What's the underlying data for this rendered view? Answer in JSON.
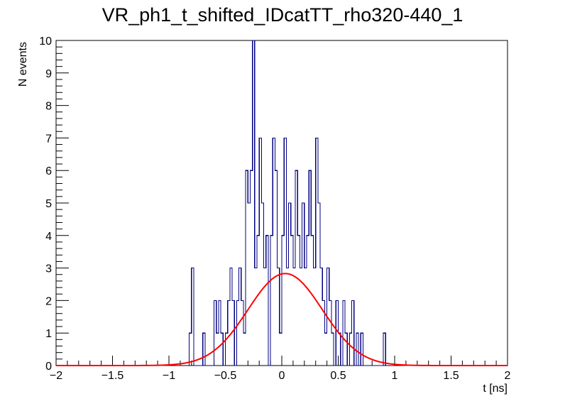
{
  "chart_data": {
    "type": "histogram",
    "title": "VR_ph1_t_shifted_IDcatTT_rho320-440_1",
    "xlabel": "t [ns]",
    "ylabel": "N events",
    "xlim": [
      -2,
      2
    ],
    "ylim": [
      0,
      10
    ],
    "x_ticks": [
      -2,
      -1.5,
      -1,
      -0.5,
      0,
      0.5,
      1,
      1.5,
      2
    ],
    "x_tick_labels": [
      "−2",
      "−1.5",
      "−1",
      "−0.5",
      "0",
      "0.5",
      "1",
      "1.5",
      "2"
    ],
    "y_ticks": [
      0,
      1,
      2,
      3,
      4,
      5,
      6,
      7,
      8,
      9,
      10
    ],
    "y_tick_labels": [
      "0",
      "1",
      "2",
      "3",
      "4",
      "5",
      "6",
      "7",
      "8",
      "9",
      "10"
    ],
    "grid": false,
    "legend": "none",
    "histogram": {
      "bin_width": 0.02,
      "bins": [
        [
          -0.82,
          1
        ],
        [
          -0.8,
          3
        ],
        [
          -0.78,
          0
        ],
        [
          -0.7,
          1
        ],
        [
          -0.68,
          0
        ],
        [
          -0.6,
          2
        ],
        [
          -0.58,
          1
        ],
        [
          -0.56,
          2
        ],
        [
          -0.54,
          1
        ],
        [
          -0.52,
          0
        ],
        [
          -0.5,
          1
        ],
        [
          -0.48,
          2
        ],
        [
          -0.46,
          3
        ],
        [
          -0.44,
          2
        ],
        [
          -0.42,
          0
        ],
        [
          -0.4,
          2
        ],
        [
          -0.38,
          3
        ],
        [
          -0.36,
          2
        ],
        [
          -0.34,
          1
        ],
        [
          -0.32,
          6
        ],
        [
          -0.3,
          5
        ],
        [
          -0.28,
          6
        ],
        [
          -0.26,
          10
        ],
        [
          -0.24,
          3
        ],
        [
          -0.22,
          4
        ],
        [
          -0.2,
          7
        ],
        [
          -0.18,
          5
        ],
        [
          -0.16,
          3
        ],
        [
          -0.14,
          4
        ],
        [
          -0.12,
          0
        ],
        [
          -0.1,
          4
        ],
        [
          -0.08,
          7
        ],
        [
          -0.06,
          6
        ],
        [
          -0.04,
          3
        ],
        [
          -0.02,
          1
        ],
        [
          0.0,
          4
        ],
        [
          0.02,
          7
        ],
        [
          0.04,
          3
        ],
        [
          0.06,
          5
        ],
        [
          0.08,
          4
        ],
        [
          0.1,
          3
        ],
        [
          0.12,
          6
        ],
        [
          0.14,
          4
        ],
        [
          0.16,
          3
        ],
        [
          0.18,
          5
        ],
        [
          0.2,
          3
        ],
        [
          0.22,
          4
        ],
        [
          0.24,
          6
        ],
        [
          0.26,
          4
        ],
        [
          0.28,
          3
        ],
        [
          0.3,
          7
        ],
        [
          0.32,
          5
        ],
        [
          0.34,
          3
        ],
        [
          0.36,
          2
        ],
        [
          0.38,
          1
        ],
        [
          0.4,
          3
        ],
        [
          0.42,
          2
        ],
        [
          0.44,
          1
        ],
        [
          0.46,
          0
        ],
        [
          0.48,
          2
        ],
        [
          0.5,
          1
        ],
        [
          0.52,
          0
        ],
        [
          0.54,
          2
        ],
        [
          0.56,
          1
        ],
        [
          0.58,
          0
        ],
        [
          0.6,
          1
        ],
        [
          0.62,
          2
        ],
        [
          0.64,
          0
        ],
        [
          0.66,
          1
        ],
        [
          0.68,
          0
        ],
        [
          0.7,
          1
        ],
        [
          0.72,
          0
        ],
        [
          0.9,
          1
        ],
        [
          0.92,
          0
        ]
      ],
      "line_color": "#000080"
    },
    "fit": {
      "type": "gaussian",
      "amplitude": 2.83,
      "mean": 0.03,
      "sigma": 0.33,
      "color": "#ff0000"
    }
  }
}
